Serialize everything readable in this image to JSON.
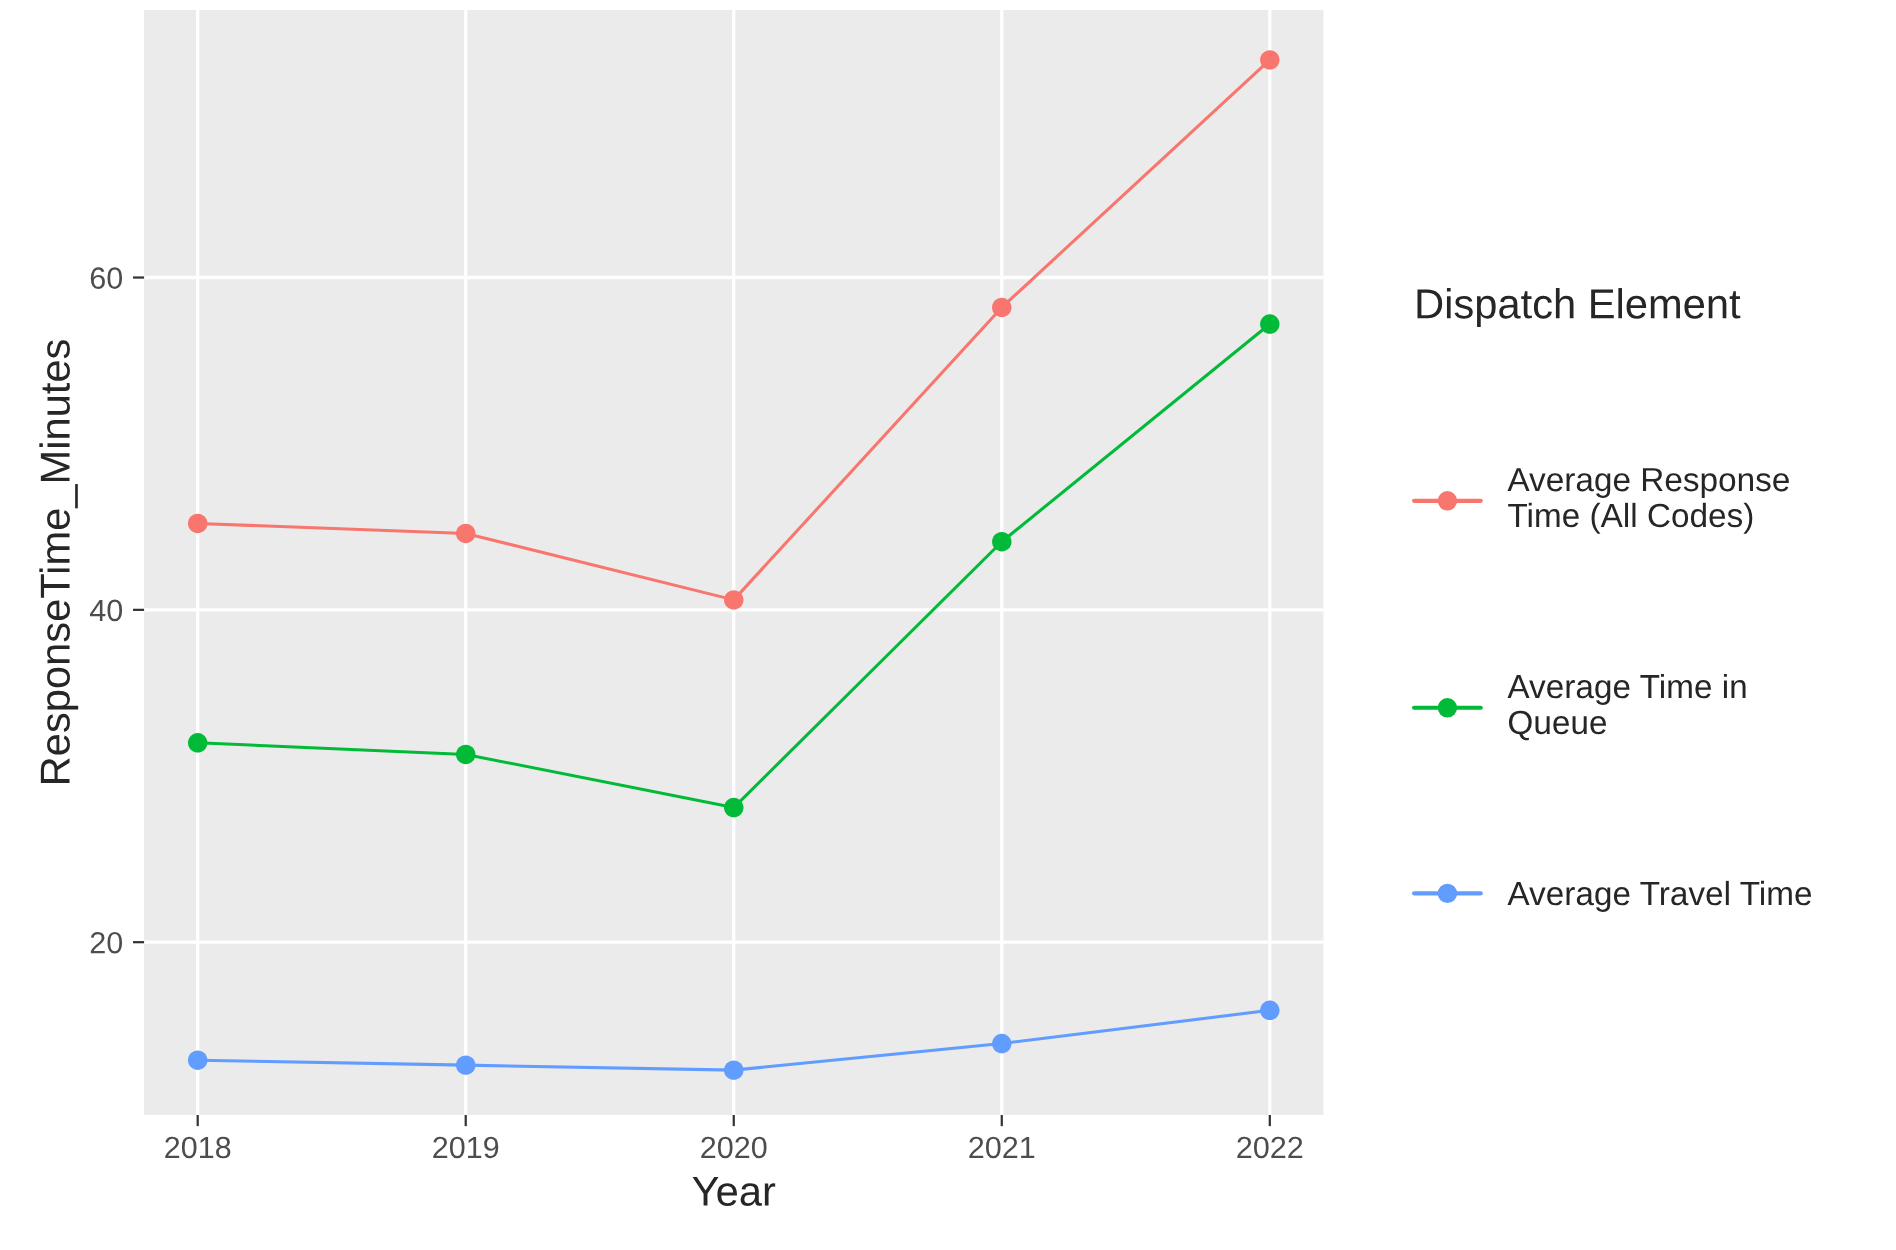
{
  "chart_data": {
    "type": "line",
    "xlabel": "Year",
    "ylabel": "ResponseTime_Minutes",
    "legend_title": "Dispatch Element",
    "x": [
      2018,
      2019,
      2020,
      2021,
      2022
    ],
    "series": [
      {
        "name": "Average Response\nTime (All Codes)",
        "color": "#f8766d",
        "values": [
          45.2,
          44.6,
          40.6,
          58.2,
          73.1
        ]
      },
      {
        "name": "Average Time in\nQueue",
        "color": "#00ba38",
        "values": [
          32.0,
          31.3,
          28.1,
          44.1,
          57.2
        ]
      },
      {
        "name": "Average Travel Time",
        "color": "#619cff",
        "values": [
          12.9,
          12.6,
          12.3,
          13.9,
          15.9
        ]
      }
    ],
    "xlim": [
      2017.8,
      2022.2
    ],
    "xticks": [
      2018,
      2019,
      2020,
      2021,
      2022
    ],
    "ylim": [
      9.6,
      76.1
    ],
    "yticks": [
      20,
      40,
      60
    ],
    "grid": true,
    "legend": "right",
    "marker": "circle",
    "line_style": "solid"
  }
}
